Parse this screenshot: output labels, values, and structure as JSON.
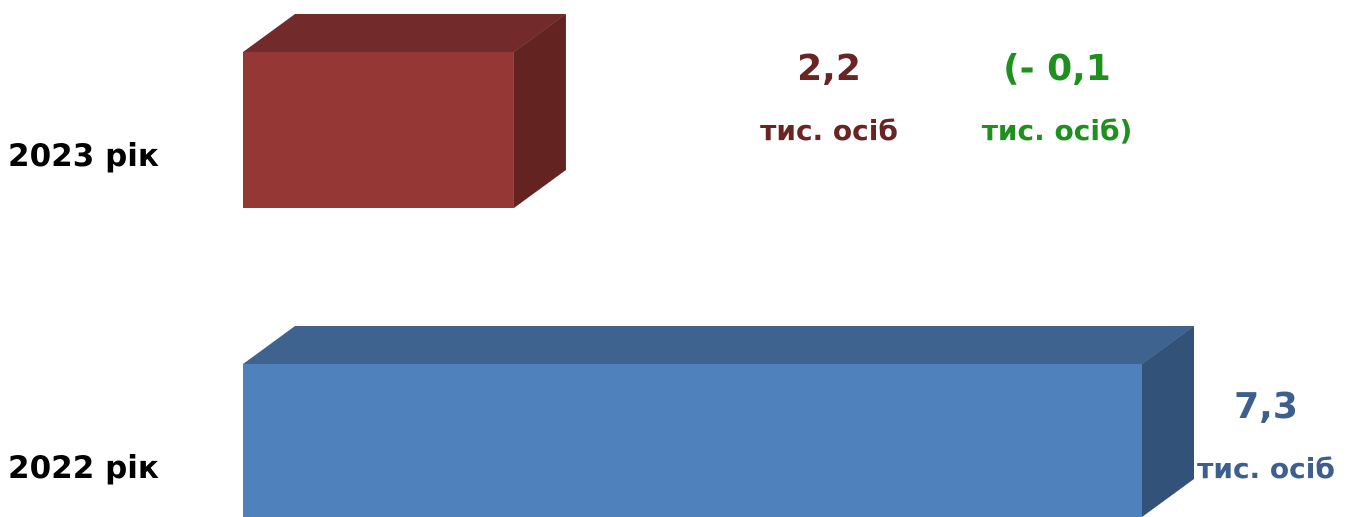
{
  "chart_data": {
    "type": "bar",
    "orientation": "horizontal",
    "style": "3d",
    "categories": [
      "2023 рік",
      "2022 рік"
    ],
    "values": [
      2.2,
      7.3
    ],
    "value_labels": [
      {
        "number": "2,2",
        "unit": "тис. осіб",
        "color": "#6b2424"
      },
      {
        "number": "7,3",
        "unit": "тис. осіб",
        "color": "#3d5f8e"
      }
    ],
    "annotations": [
      {
        "line1": "(- 0,1",
        "line2": "тис. осіб)",
        "color": "#1f8f1f"
      }
    ],
    "colors": {
      "bar_2023": {
        "front": "#953735",
        "top": "#722b2a",
        "side": "#622321"
      },
      "bar_2022": {
        "front": "#4f81bd",
        "top": "#3e638f",
        "side": "#33527a"
      }
    },
    "title": "",
    "xlabel": "",
    "ylabel": "",
    "grid": false,
    "legend": "none"
  }
}
